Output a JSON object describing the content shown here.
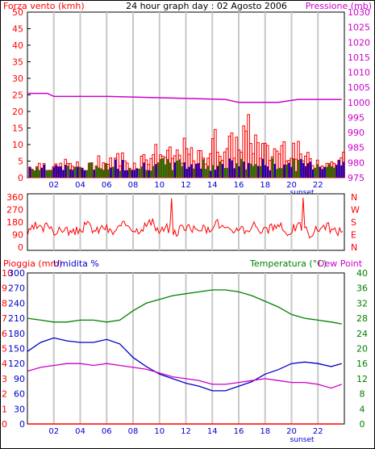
{
  "colors": {
    "wind": "#ff0000",
    "wind_dir_n": "#0000cc",
    "wind_dir_s": "#008000",
    "pressure": "#cc00cc",
    "humidity": "#0000cc",
    "temperature": "#008000",
    "dew_point": "#cc00cc",
    "rain": "#ff0000",
    "grid": "#c8c8c8",
    "text_blue": "#0000cc"
  },
  "chart_data": [
    {
      "type": "bar",
      "title": "24 hour graph day : 02 Agosto 2006",
      "ylabel_left": "Forza vento (kmh)",
      "ylabel_right": "Pressione (mb)",
      "x_ticks": [
        "02",
        "04",
        "06",
        "08",
        "10",
        "12",
        "14",
        "16",
        "18",
        "20",
        "22"
      ],
      "sunset_label": "sunset",
      "sunset_hour": 20.8,
      "y_left_ticks": [
        "0",
        "5",
        "10",
        "15",
        "20",
        "25",
        "30",
        "35",
        "40",
        "45",
        "50"
      ],
      "y_right_ticks": [
        "975",
        "980",
        "985",
        "990",
        "995",
        "1000",
        "1005",
        "1010",
        "1015",
        "1020",
        "1025",
        "1030"
      ],
      "ylim_left": [
        0,
        50
      ],
      "ylim_right": [
        975,
        1030
      ],
      "x_range_hours": [
        0,
        24
      ],
      "series": [
        {
          "name": "Forza vento (kmh)",
          "x": [
            0.3,
            1.2,
            2.0,
            2.8,
            3.6,
            4.5,
            5.3,
            6.1,
            7.0,
            7.8,
            8.6,
            9.4,
            10.2,
            11.0,
            11.8,
            12.6,
            13.4,
            14.2,
            15.0,
            15.8,
            16.6,
            17.4,
            18.2,
            19.0,
            19.8,
            20.6,
            21.4,
            22.2,
            23.0,
            23.7
          ],
          "values": [
            5,
            6,
            4,
            6,
            5,
            4,
            8,
            6,
            9,
            5,
            8,
            11,
            10,
            9,
            12,
            8,
            10,
            16,
            13,
            15,
            20,
            14,
            10,
            13,
            15,
            10,
            7,
            8,
            6,
            9
          ]
        },
        {
          "name": "Pressione (mb)",
          "x": [
            0,
            1.5,
            2.0,
            5.9,
            6.1,
            15.0,
            16.0,
            19.0,
            20.5,
            21.0,
            23.8
          ],
          "values": [
            1003,
            1003,
            1002,
            1002,
            1002,
            1001,
            1000,
            1000,
            1001,
            1001,
            1001
          ]
        }
      ]
    },
    {
      "type": "line",
      "y_left_ticks": [
        "0",
        "90",
        "180",
        "270",
        "360"
      ],
      "y_right_ticks": [
        "N",
        "E",
        "S",
        "W",
        "N"
      ],
      "ylim": [
        0,
        360
      ],
      "series": [
        {
          "name": "direzione vento",
          "x": [
            0.0,
            0.6,
            1.1,
            1.6,
            2.2,
            2.8,
            3.4,
            4.0,
            4.6,
            5.2,
            5.8,
            6.4,
            7.0,
            7.6,
            8.2,
            8.8,
            9.4,
            10.0,
            10.6,
            11.2,
            11.8,
            12.4,
            13.0,
            13.6,
            14.2,
            14.8,
            15.4,
            16.0,
            16.6,
            17.2,
            17.8,
            18.4,
            19.0,
            19.6,
            20.2,
            20.8,
            21.4,
            22.0,
            22.6,
            23.2,
            23.8
          ],
          "values": [
            90,
            150,
            120,
            170,
            100,
            140,
            95,
            130,
            160,
            110,
            150,
            100,
            140,
            170,
            120,
            150,
            180,
            110,
            140,
            95,
            160,
            120,
            150,
            110,
            190,
            140,
            100,
            150,
            120,
            170,
            110,
            130,
            160,
            100,
            140,
            150,
            95,
            130,
            160,
            110,
            120
          ]
        }
      ]
    },
    {
      "type": "line",
      "ylabel_rain": "Pioggia (mm)",
      "ylabel_humidity": "Umidita %",
      "ylabel_temperature": "Temperatura (°C)",
      "ylabel_dew": "Dew Point",
      "x_ticks": [
        "02",
        "04",
        "06",
        "08",
        "10",
        "12",
        "14",
        "16",
        "18",
        "20",
        "22"
      ],
      "sunset_label": "sunset",
      "rain_ticks": [
        "0",
        "1",
        "2",
        "3",
        "4",
        "5",
        "6",
        "7",
        "8",
        "9",
        "10"
      ],
      "humidity_ticks": [
        "0",
        "30",
        "60",
        "90",
        "120",
        "150",
        "180",
        "210",
        "240",
        "270",
        "300"
      ],
      "temperature_ticks": [
        "0",
        "4",
        "8",
        "12",
        "16",
        "20",
        "24",
        "28",
        "32",
        "36",
        "40"
      ],
      "ylim_temperature": [
        0,
        40
      ],
      "ylim_humidity": [
        0,
        300
      ],
      "ylim_rain": [
        0,
        10
      ],
      "x": [
        0,
        1,
        2,
        3,
        4,
        5,
        6,
        7,
        8,
        9,
        10,
        11,
        12,
        13,
        14,
        15,
        16,
        17,
        18,
        19,
        20,
        21,
        22,
        23,
        23.8
      ],
      "series": [
        {
          "name": "Temperatura (°C)",
          "values": [
            28,
            27.5,
            27,
            27,
            27.5,
            27.5,
            27,
            27.5,
            30,
            32,
            33,
            34,
            34.5,
            35,
            35.5,
            35.5,
            35,
            34,
            32.5,
            31,
            29,
            28,
            27.5,
            27,
            26.5
          ]
        },
        {
          "name": "Umidita %",
          "values": [
            48,
            54,
            57,
            55,
            54,
            54,
            56,
            53,
            44,
            38,
            33,
            30,
            27,
            25,
            22,
            22,
            25,
            28,
            33,
            36,
            40,
            41,
            40,
            38,
            40
          ]
        },
        {
          "name": "Dew Point",
          "values": [
            14,
            15,
            15.5,
            16,
            16,
            15.5,
            16,
            15.5,
            15,
            14.5,
            13.5,
            12.5,
            12,
            11.5,
            10.5,
            10.5,
            11,
            11.5,
            12,
            11.5,
            11,
            11,
            10.5,
            9.5,
            10.5
          ]
        },
        {
          "name": "Pioggia (mm)",
          "values": [
            0,
            0,
            0,
            0,
            0,
            0,
            0,
            0,
            0,
            0,
            0,
            0,
            0,
            0,
            0,
            0,
            0,
            0,
            0,
            0,
            0,
            0,
            0,
            0,
            0
          ]
        }
      ]
    }
  ]
}
